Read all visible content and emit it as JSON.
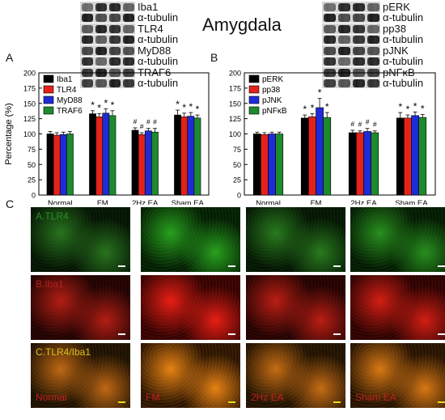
{
  "title": "Amygdala",
  "panel_labels": {
    "a": "A",
    "b": "B",
    "c": "C"
  },
  "blot_left": {
    "labels": [
      "Iba1",
      "α-tubulin",
      "TLR4",
      "α-tubulin",
      "MyD88",
      "α-tubulin",
      "TRAF6",
      "α-tubulin"
    ]
  },
  "blot_right": {
    "labels": [
      "pERK",
      "α-tubulin",
      "pp38",
      "α-tubulin",
      "pJNK",
      "α-tubulin",
      "pNFκB",
      "α-tubulin"
    ]
  },
  "chart_data": [
    {
      "type": "bar",
      "panel": "A",
      "categories": [
        "Normal",
        "FM",
        "2Hz EA",
        "Sham EA"
      ],
      "ylabel": "Percentage (%)",
      "ylim": [
        0,
        200
      ],
      "yticks": [
        0,
        25,
        50,
        75,
        100,
        125,
        150,
        175,
        200
      ],
      "legend_placement": "top-left",
      "series": [
        {
          "name": "Iba1",
          "color": "#000000",
          "values": [
            100,
            133,
            106,
            131
          ],
          "errors": [
            4,
            5,
            4,
            8
          ]
        },
        {
          "name": "TLR4",
          "color": "#e3231a",
          "values": [
            98,
            128,
            99,
            128
          ],
          "errors": [
            4,
            5,
            3,
            6
          ]
        },
        {
          "name": "MyD88",
          "color": "#1f2bd8",
          "values": [
            99,
            134,
            105,
            129
          ],
          "errors": [
            4,
            7,
            4,
            6
          ]
        },
        {
          "name": "TRAF6",
          "color": "#1e8a2f",
          "values": [
            100,
            130,
            103,
            126
          ],
          "errors": [
            4,
            8,
            6,
            5
          ]
        }
      ],
      "annotations": [
        {
          "category": "FM",
          "text": [
            "*",
            "*",
            "*",
            "*"
          ]
        },
        {
          "category": "2Hz EA",
          "text": [
            "#",
            "#",
            "#",
            "#"
          ]
        },
        {
          "category": "Sham EA",
          "text": [
            "*",
            "*",
            "*",
            "*"
          ]
        }
      ]
    },
    {
      "type": "bar",
      "panel": "B",
      "categories": [
        "Normal",
        "FM",
        "2Hz EA",
        "Sham EA"
      ],
      "ylabel": "",
      "ylim": [
        0,
        200
      ],
      "yticks": [
        0,
        25,
        50,
        75,
        100,
        125,
        150,
        175,
        200
      ],
      "legend_placement": "top-left",
      "series": [
        {
          "name": "pERK",
          "color": "#000000",
          "values": [
            100,
            126,
            102,
            126
          ],
          "errors": [
            3,
            5,
            4,
            9
          ]
        },
        {
          "name": "pp38",
          "color": "#e3231a",
          "values": [
            99,
            128,
            102,
            126
          ],
          "errors": [
            3,
            5,
            3,
            5
          ]
        },
        {
          "name": "pJNK",
          "color": "#1f2bd8",
          "values": [
            100,
            143,
            104,
            130
          ],
          "errors": [
            3,
            15,
            5,
            6
          ]
        },
        {
          "name": "pNFκB",
          "color": "#1e8a2f",
          "values": [
            100,
            127,
            102,
            127
          ],
          "errors": [
            3,
            8,
            3,
            5
          ]
        }
      ],
      "annotations": [
        {
          "category": "FM",
          "text": [
            "*",
            "*",
            "*",
            "*"
          ]
        },
        {
          "category": "2Hz EA",
          "text": [
            "#",
            "#",
            "#",
            "#"
          ]
        },
        {
          "category": "Sham EA",
          "text": [
            "*",
            "*",
            "*",
            "*"
          ]
        }
      ]
    }
  ],
  "micrographs": {
    "rows": [
      {
        "label": "A.TLR4",
        "label_color": "#2a8c2a",
        "tone": "green"
      },
      {
        "label": "B.Iba1",
        "label_color": "#b32020",
        "tone": "red"
      },
      {
        "label": "C.TLR4/Iba1",
        "label_color": "#d8c020",
        "tone": "merge"
      }
    ],
    "columns": [
      {
        "label": "Normal",
        "label_color": "#c02020",
        "intensity": 0.35
      },
      {
        "label": "FM",
        "label_color": "#c02020",
        "intensity": 1.0
      },
      {
        "label": "2Hz EA",
        "label_color": "#c02020",
        "intensity": 0.45
      },
      {
        "label": "Sham EA",
        "label_color": "#c02020",
        "intensity": 0.75
      }
    ]
  }
}
